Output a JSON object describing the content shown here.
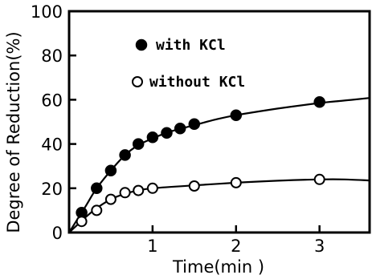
{
  "chart_data": {
    "type": "line",
    "xlabel": "Time(min )",
    "ylabel": "Degree of Reduction(%)",
    "xlim": [
      0,
      3.6
    ],
    "ylim": [
      0,
      100
    ],
    "xticks": [
      1,
      2,
      3
    ],
    "yticks": [
      0,
      20,
      40,
      60,
      80,
      100
    ],
    "xtick_labels": [
      "1",
      "2",
      "3"
    ],
    "ytick_labels": [
      "0",
      "20",
      "40",
      "60",
      "80",
      "100"
    ],
    "grid": false,
    "legend_position": "top-center",
    "series": [
      {
        "name": "with KCl",
        "marker": "filled-circle",
        "points": [
          {
            "x": 0.15,
            "y": 9
          },
          {
            "x": 0.33,
            "y": 20
          },
          {
            "x": 0.5,
            "y": 28
          },
          {
            "x": 0.67,
            "y": 35
          },
          {
            "x": 0.83,
            "y": 40
          },
          {
            "x": 1.0,
            "y": 43
          },
          {
            "x": 1.17,
            "y": 45
          },
          {
            "x": 1.33,
            "y": 47
          },
          {
            "x": 1.5,
            "y": 49
          },
          {
            "x": 2.0,
            "y": 53
          },
          {
            "x": 3.0,
            "y": 59
          }
        ],
        "curve": [
          [
            0,
            0
          ],
          [
            0.1,
            6
          ],
          [
            0.2,
            12
          ],
          [
            0.33,
            20
          ],
          [
            0.5,
            28
          ],
          [
            0.67,
            35
          ],
          [
            0.83,
            39.5
          ],
          [
            1.0,
            42.5
          ],
          [
            1.2,
            45.5
          ],
          [
            1.5,
            48.5
          ],
          [
            1.75,
            51
          ],
          [
            2.0,
            53
          ],
          [
            2.5,
            56
          ],
          [
            3.0,
            58.5
          ],
          [
            3.4,
            60
          ],
          [
            3.6,
            60.8
          ]
        ]
      },
      {
        "name": "without KCl",
        "marker": "open-circle",
        "points": [
          {
            "x": 0.15,
            "y": 5
          },
          {
            "x": 0.33,
            "y": 10
          },
          {
            "x": 0.5,
            "y": 15
          },
          {
            "x": 0.67,
            "y": 18
          },
          {
            "x": 0.83,
            "y": 19
          },
          {
            "x": 1.0,
            "y": 20
          },
          {
            "x": 1.5,
            "y": 21
          },
          {
            "x": 2.0,
            "y": 22.5
          },
          {
            "x": 3.0,
            "y": 24
          }
        ],
        "curve": [
          [
            0,
            0
          ],
          [
            0.1,
            3.5
          ],
          [
            0.2,
            7
          ],
          [
            0.33,
            11
          ],
          [
            0.5,
            15
          ],
          [
            0.67,
            17.5
          ],
          [
            0.83,
            19
          ],
          [
            1.0,
            20
          ],
          [
            1.5,
            21.3
          ],
          [
            2.0,
            22.5
          ],
          [
            2.5,
            23.4
          ],
          [
            3.0,
            24
          ],
          [
            3.3,
            24
          ],
          [
            3.6,
            23.5
          ]
        ]
      }
    ]
  }
}
